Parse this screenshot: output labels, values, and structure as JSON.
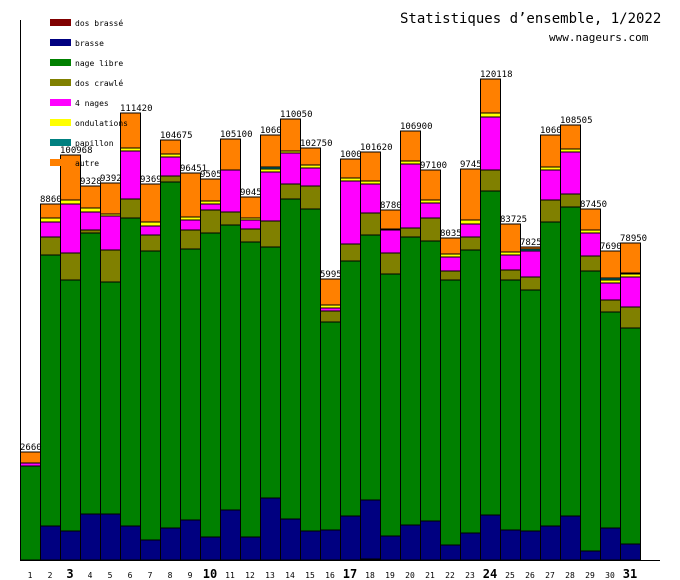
{
  "chart_data": {
    "type": "bar",
    "stacked": true,
    "title": "Statistiques d’ensemble, 1/2022",
    "subtitle": "www.nageurs.com",
    "xlabel": "",
    "ylabel": "",
    "ylim": [
      0,
      135000
    ],
    "grid": false,
    "legend_placement": "top-left",
    "categories": [
      "1",
      "2",
      "3",
      "4",
      "5",
      "6",
      "7",
      "8",
      "9",
      "10",
      "11",
      "12",
      "13",
      "14",
      "15",
      "16",
      "17",
      "18",
      "19",
      "20",
      "21",
      "22",
      "23",
      "24",
      "25",
      "26",
      "27",
      "28",
      "29",
      "30",
      "31"
    ],
    "highlighted_categories": [
      "3",
      "10",
      "17",
      "24",
      "31"
    ],
    "bar_labels": [
      "2660",
      "8860",
      "100968",
      "9328",
      "9392",
      "111420",
      "9369",
      "104675",
      "96451",
      "9505",
      "105100",
      "9045",
      "1060",
      "110050",
      "102750",
      "5995",
      "1000",
      "101620",
      "8780",
      "106900",
      "97100",
      "8035",
      "9745",
      "120118",
      "83725",
      "7825",
      "1060",
      "108505",
      "87450",
      "7690",
      "78950"
    ],
    "series": [
      {
        "name": "dos brassé",
        "color": "#800000",
        "values": [
          0,
          0,
          0,
          0,
          0,
          0,
          0,
          0,
          0,
          0,
          0,
          0,
          0,
          0,
          0,
          0,
          0,
          250,
          0,
          0,
          0,
          0,
          0,
          0,
          0,
          0,
          0,
          0,
          0,
          0,
          0
        ]
      },
      {
        "name": "brasse",
        "color": "#000080",
        "values": [
          0,
          8500,
          7250,
          11500,
          11500,
          8500,
          5000,
          8000,
          10000,
          5750,
          12500,
          5750,
          15500,
          10250,
          7250,
          7500,
          11000,
          14750,
          6000,
          8750,
          9750,
          3750,
          6750,
          11250,
          7500,
          7250,
          8500,
          11000,
          2250,
          8000,
          4000
        ]
      },
      {
        "name": "nage libre",
        "color": "#008000",
        "values": [
          23500,
          67750,
          62750,
          70250,
          58000,
          77000,
          72250,
          86500,
          67750,
          76000,
          71250,
          73750,
          62750,
          80000,
          80500,
          52000,
          63750,
          66250,
          65500,
          72000,
          70000,
          66250,
          70750,
          81000,
          62500,
          60250,
          76000,
          77250,
          70000,
          54000,
          54000
        ]
      },
      {
        "name": "dos crawlé",
        "color": "#808000",
        "values": [
          0,
          4500,
          6750,
          750,
          8000,
          4750,
          4000,
          1500,
          4750,
          5750,
          3250,
          3250,
          6500,
          3750,
          5750,
          2750,
          4250,
          5500,
          5250,
          2250,
          5750,
          2250,
          3250,
          5250,
          2500,
          3250,
          5500,
          3250,
          3750,
          3000,
          5250
        ]
      },
      {
        "name": "4 nages",
        "color": "#ff00ff",
        "values": [
          750,
          3750,
          12250,
          4500,
          8500,
          12000,
          2250,
          4750,
          2500,
          1500,
          10500,
          2250,
          12250,
          7750,
          4500,
          750,
          15750,
          7250,
          5750,
          16000,
          3750,
          3500,
          3250,
          13250,
          3750,
          6500,
          7500,
          10500,
          5750,
          4250,
          7500
        ]
      },
      {
        "name": "ondulations",
        "color": "#ffff00",
        "values": [
          0,
          1000,
          1000,
          1000,
          500,
          750,
          1000,
          750,
          750,
          750,
          0,
          500,
          750,
          500,
          750,
          750,
          750,
          750,
          0,
          750,
          750,
          750,
          1000,
          1000,
          750,
          0,
          750,
          750,
          750,
          750,
          750
        ]
      },
      {
        "name": "papillon",
        "color": "#008080",
        "values": [
          0,
          0,
          0,
          0,
          0,
          0,
          0,
          0,
          0,
          0,
          0,
          0,
          500,
          0,
          0,
          0,
          0,
          0,
          250,
          0,
          0,
          0,
          0,
          0,
          0,
          500,
          0,
          0,
          0,
          500,
          250
        ]
      },
      {
        "name": "autre",
        "color": "#ff8000",
        "values": [
          2750,
          3500,
          11250,
          5500,
          7750,
          8750,
          9500,
          3500,
          11000,
          5500,
          7750,
          5250,
          8000,
          8000,
          4250,
          6500,
          4750,
          7250,
          4750,
          7500,
          7500,
          4000,
          12750,
          8500,
          7000,
          500,
          8000,
          6000,
          5250,
          6750,
          7500
        ]
      }
    ]
  }
}
